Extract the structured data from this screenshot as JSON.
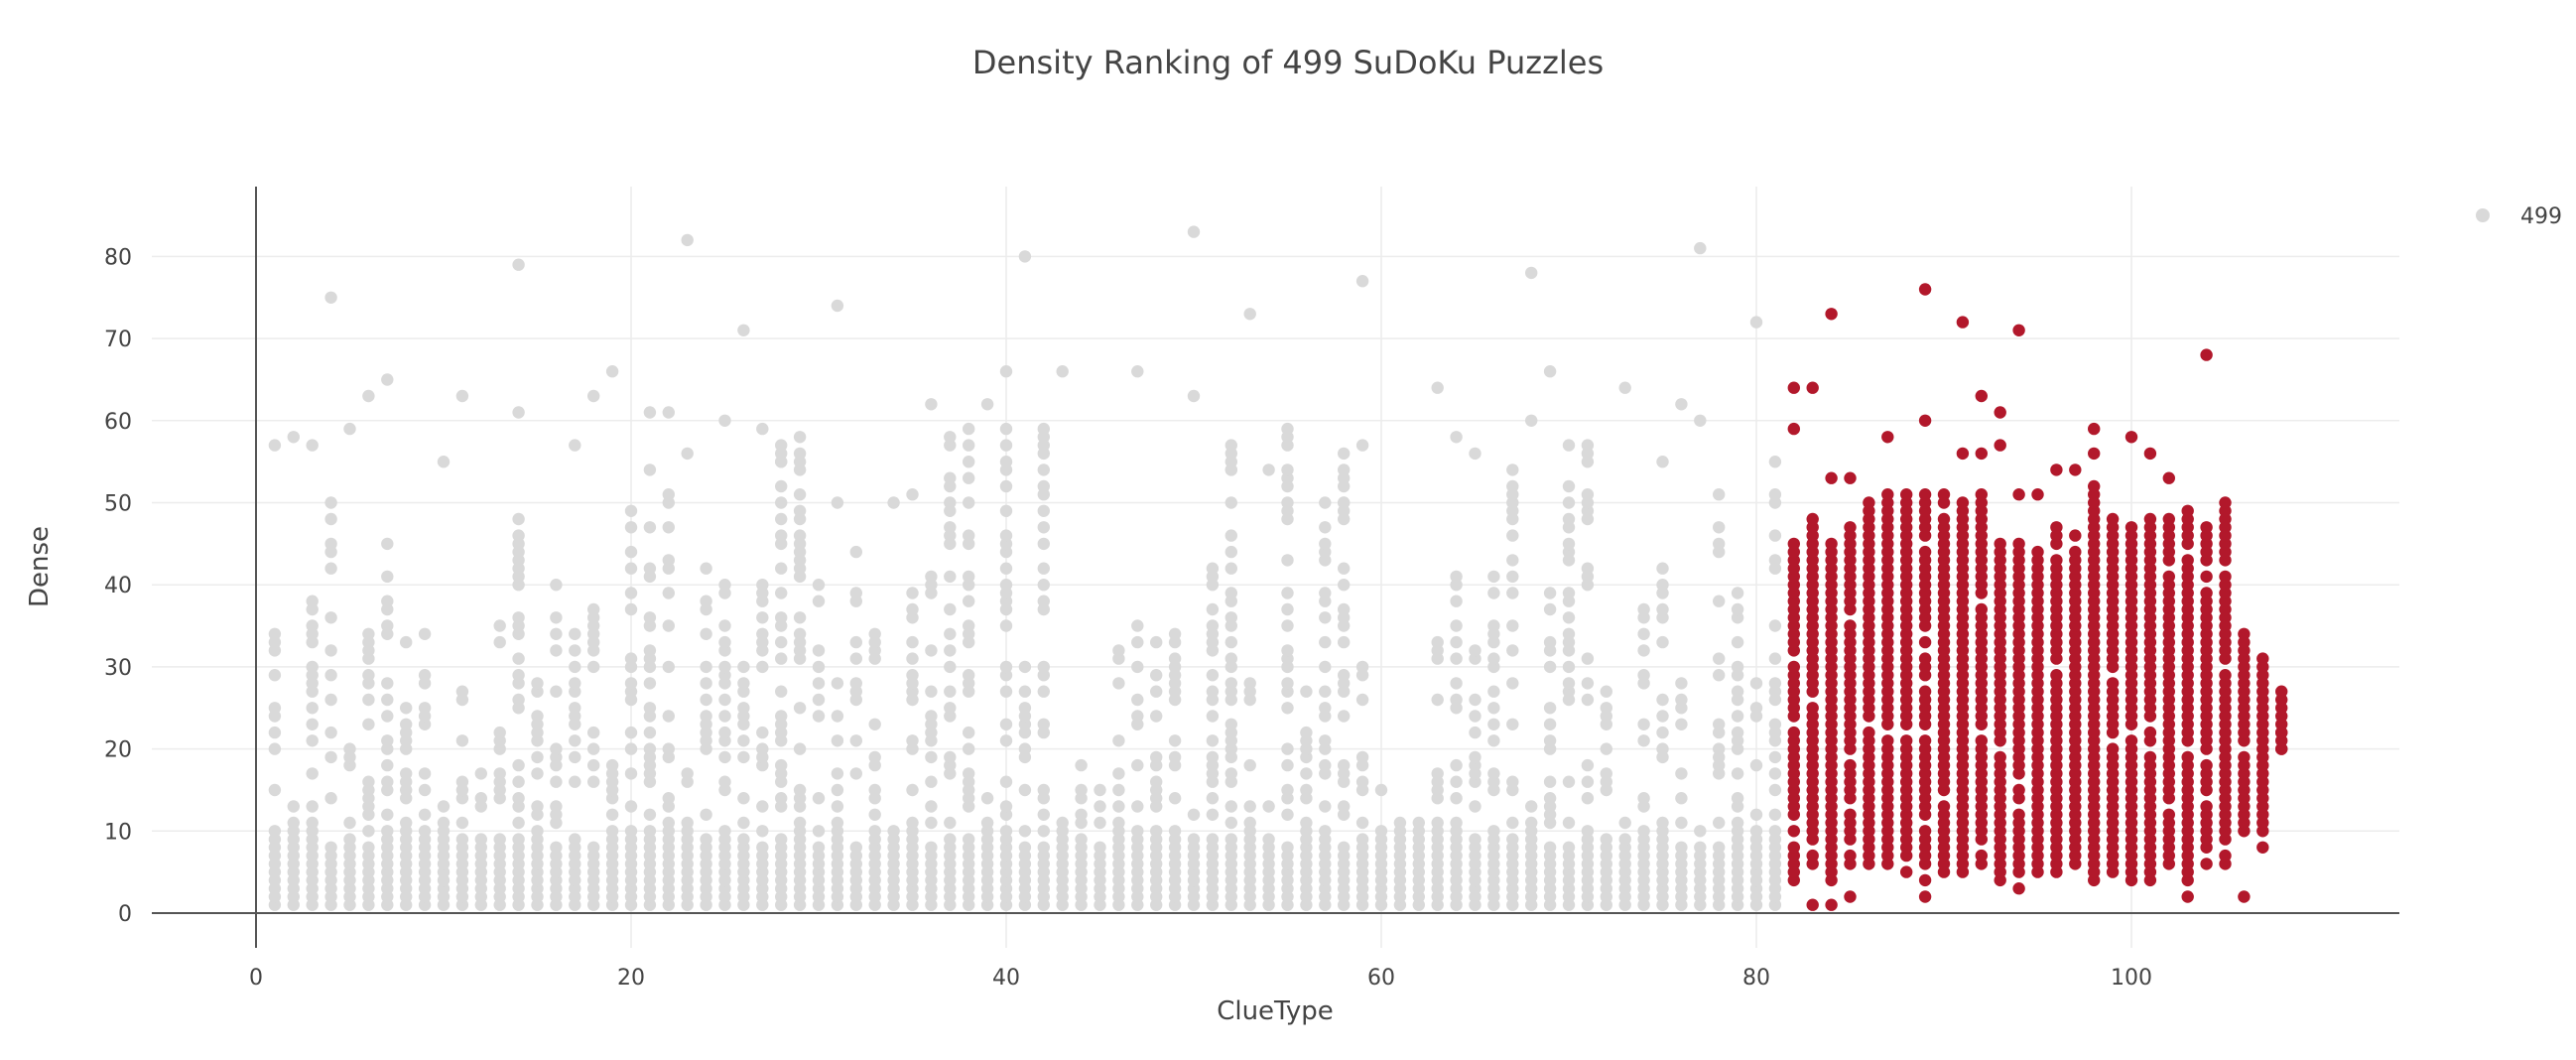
{
  "chart_data": {
    "type": "scatter",
    "title": "Density Ranking of 499 SuDoKu Puzzles",
    "xlabel": "ClueType",
    "ylabel": "Dense",
    "xlim": [
      -10,
      114
    ],
    "ylim": [
      -4,
      88
    ],
    "x_ticks": [
      0,
      20,
      40,
      60,
      80,
      100
    ],
    "y_ticks": [
      0,
      10,
      20,
      30,
      40,
      50,
      60,
      70,
      80
    ],
    "grid": true,
    "legend": {
      "position": "top-right",
      "entries": [
        "499"
      ]
    },
    "colors": {
      "background_points": "#d9d9d9",
      "highlight_points": "#b2182b",
      "grid": "#ececec",
      "axis": "#555555",
      "text": "#444444"
    },
    "series": [
      {
        "role": "background",
        "x_range": [
          1,
          81
        ],
        "y_dense_band": [
          1,
          9
        ],
        "outliers": [
          {
            "x": 4,
            "y": 75
          },
          {
            "x": 14,
            "y": 79
          },
          {
            "x": 23,
            "y": 82
          },
          {
            "x": 26,
            "y": 71
          },
          {
            "x": 31,
            "y": 74
          },
          {
            "x": 41,
            "y": 80
          },
          {
            "x": 50,
            "y": 83
          },
          {
            "x": 53,
            "y": 73
          },
          {
            "x": 59,
            "y": 77
          },
          {
            "x": 68,
            "y": 78
          },
          {
            "x": 77,
            "y": 81
          },
          {
            "x": 80,
            "y": 72
          }
        ]
      },
      {
        "name": "499",
        "role": "highlight",
        "x_range": [
          82,
          108
        ],
        "upper_by_x": [
          {
            "x": 82,
            "y": 45
          },
          {
            "x": 83,
            "y": 48
          },
          {
            "x": 84,
            "y": 45
          },
          {
            "x": 85,
            "y": 47
          },
          {
            "x": 86,
            "y": 50
          },
          {
            "x": 87,
            "y": 51
          },
          {
            "x": 88,
            "y": 51
          },
          {
            "x": 89,
            "y": 51
          },
          {
            "x": 90,
            "y": 51
          },
          {
            "x": 91,
            "y": 50
          },
          {
            "x": 92,
            "y": 51
          },
          {
            "x": 93,
            "y": 45
          },
          {
            "x": 94,
            "y": 45
          },
          {
            "x": 95,
            "y": 44
          },
          {
            "x": 96,
            "y": 47
          },
          {
            "x": 97,
            "y": 46
          },
          {
            "x": 98,
            "y": 52
          },
          {
            "x": 99,
            "y": 48
          },
          {
            "x": 100,
            "y": 47
          },
          {
            "x": 101,
            "y": 48
          },
          {
            "x": 102,
            "y": 48
          },
          {
            "x": 103,
            "y": 49
          },
          {
            "x": 104,
            "y": 47
          },
          {
            "x": 105,
            "y": 50
          },
          {
            "x": 106,
            "y": 34
          },
          {
            "x": 107,
            "y": 31
          },
          {
            "x": 108,
            "y": 27
          }
        ],
        "outliers": [
          {
            "x": 82,
            "y": 64
          },
          {
            "x": 82,
            "y": 59
          },
          {
            "x": 83,
            "y": 64
          },
          {
            "x": 84,
            "y": 73
          },
          {
            "x": 84,
            "y": 53
          },
          {
            "x": 85,
            "y": 53
          },
          {
            "x": 87,
            "y": 58
          },
          {
            "x": 89,
            "y": 76
          },
          {
            "x": 89,
            "y": 60
          },
          {
            "x": 91,
            "y": 72
          },
          {
            "x": 91,
            "y": 56
          },
          {
            "x": 92,
            "y": 63
          },
          {
            "x": 92,
            "y": 56
          },
          {
            "x": 93,
            "y": 61
          },
          {
            "x": 93,
            "y": 57
          },
          {
            "x": 94,
            "y": 71
          },
          {
            "x": 94,
            "y": 51
          },
          {
            "x": 95,
            "y": 51
          },
          {
            "x": 96,
            "y": 54
          },
          {
            "x": 97,
            "y": 54
          },
          {
            "x": 98,
            "y": 59
          },
          {
            "x": 98,
            "y": 56
          },
          {
            "x": 100,
            "y": 58
          },
          {
            "x": 101,
            "y": 56
          },
          {
            "x": 102,
            "y": 53
          },
          {
            "x": 104,
            "y": 68
          },
          {
            "x": 83,
            "y": 1
          },
          {
            "x": 84,
            "y": 1
          },
          {
            "x": 85,
            "y": 2
          },
          {
            "x": 89,
            "y": 2
          },
          {
            "x": 94,
            "y": 3
          },
          {
            "x": 103,
            "y": 2
          },
          {
            "x": 106,
            "y": 2
          },
          {
            "x": 107,
            "y": 8
          },
          {
            "x": 108,
            "y": 20
          },
          {
            "x": 108,
            "y": 22
          }
        ]
      }
    ]
  }
}
